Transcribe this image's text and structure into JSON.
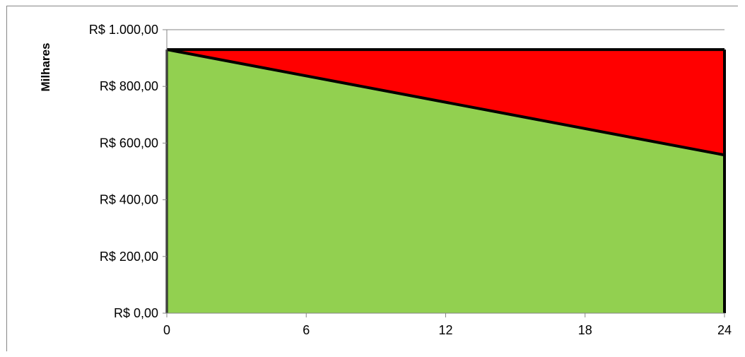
{
  "chart_data": {
    "type": "area",
    "title": "",
    "ylabel": "Milhares",
    "xlabel": "",
    "x": [
      0,
      24
    ],
    "xticks": [
      0,
      6,
      12,
      18,
      24
    ],
    "xtick_labels": [
      "0",
      "6",
      "12",
      "18",
      "24"
    ],
    "ylim": [
      0,
      1000
    ],
    "yticks": [
      0,
      200,
      400,
      600,
      800,
      1000
    ],
    "ytick_labels": [
      "R$ 0,00",
      "R$ 200,00",
      "R$ 400,00",
      "R$ 600,00",
      "R$ 800,00",
      "R$ 1.000,00"
    ],
    "series": [
      {
        "values": [
          930,
          558
        ],
        "color": "#92d050"
      },
      {
        "values": [
          930,
          930
        ],
        "color": "#ff0000"
      }
    ],
    "grid": "horizontal",
    "legend": "none"
  }
}
